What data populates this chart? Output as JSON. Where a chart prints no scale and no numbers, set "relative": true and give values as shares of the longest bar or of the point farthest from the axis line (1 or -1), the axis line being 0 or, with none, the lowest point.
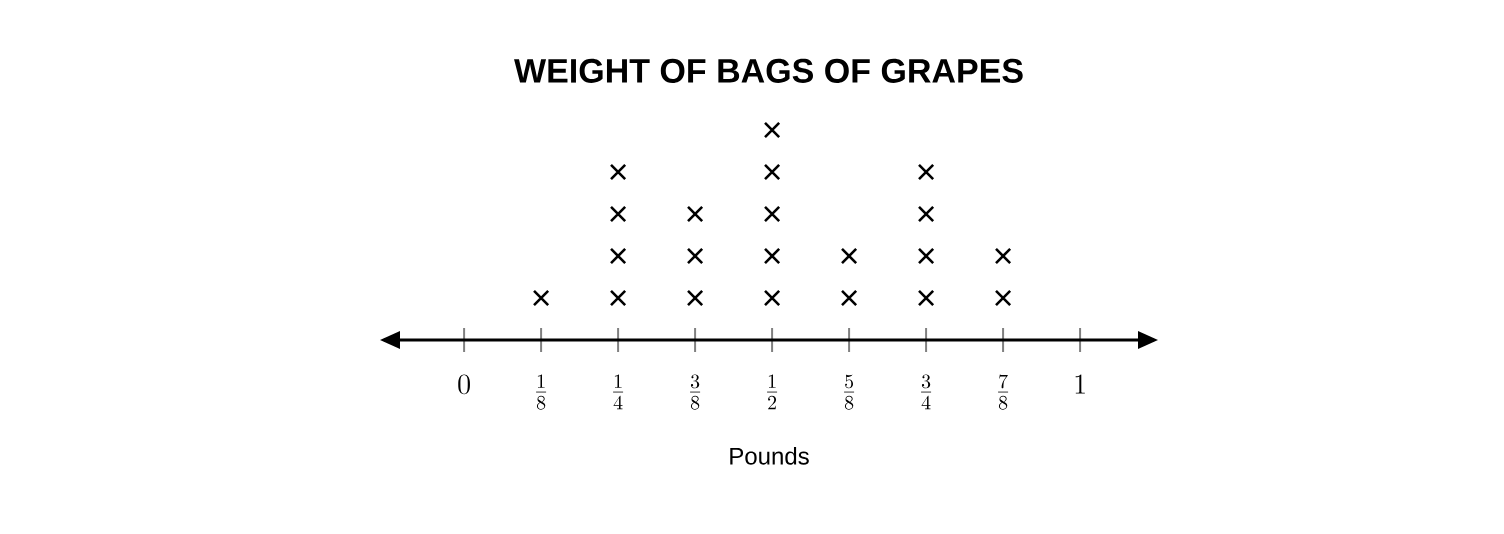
{
  "chart_data": {
    "type": "scatter",
    "title": "WEIGHT OF BAGS OF GRAPES",
    "xlabel": "Pounds",
    "x": [
      0.125,
      0.25,
      0.25,
      0.25,
      0.25,
      0.375,
      0.375,
      0.375,
      0.5,
      0.5,
      0.5,
      0.5,
      0.5,
      0.625,
      0.625,
      0.75,
      0.75,
      0.75,
      0.75,
      0.875,
      0.875
    ],
    "values": [
      0.2,
      0.2,
      0.4,
      0.6,
      0.8,
      0.2,
      0.4,
      0.6,
      0.2,
      0.4,
      0.6,
      0.8,
      1,
      0.2,
      0.4,
      0.2,
      0.4,
      0.6,
      0.8,
      0.2,
      0.4
    ],
    "relative": true,
    "color": "#000000",
    "marker": "cross",
    "xlim": [
      -0.13,
      1.12
    ],
    "xticks": [
      {
        "value": 0,
        "label": "0"
      },
      {
        "value": 0.125,
        "label": "\\frac{1}{8}"
      },
      {
        "value": 0.25,
        "label": "\\frac{1}{4}"
      },
      {
        "value": 0.375,
        "label": "\\frac{3}{8}"
      },
      {
        "value": 0.5,
        "label": "\\frac{1}{2}"
      },
      {
        "value": 0.625,
        "label": "\\frac{5}{8}"
      },
      {
        "value": 0.75,
        "label": "\\frac{3}{4}"
      },
      {
        "value": 0.875,
        "label": "\\frac{7}{8}"
      },
      {
        "value": 1,
        "label": "1"
      }
    ],
    "tick_labels": "x"
  }
}
